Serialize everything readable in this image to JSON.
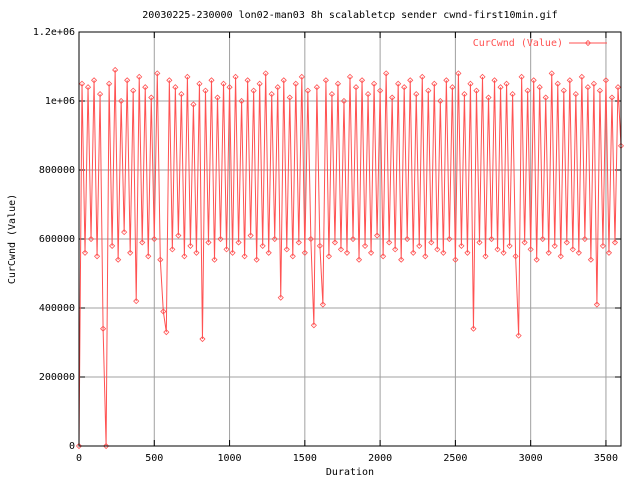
{
  "chart_data": {
    "type": "line",
    "title": "20030225-230000 lon02-man03 8h scalabletcp sender cwnd-first10min.gif",
    "x_label": "Duration",
    "y_label": "CurCwnd (Value)",
    "xlim": [
      0,
      3600
    ],
    "ylim": [
      0,
      1200000
    ],
    "xticks": [
      0,
      500,
      1000,
      1500,
      2000,
      2500,
      3000,
      3500
    ],
    "yticks": [
      0,
      200000,
      400000,
      600000,
      800000,
      {
        "value": 1000000,
        "label": "1e+06"
      },
      {
        "value": 1200000,
        "label": "1.2e+06"
      }
    ],
    "grid": true,
    "legend": "top-right",
    "x": [
      0,
      20,
      40,
      60,
      80,
      100,
      120,
      140,
      160,
      180,
      200,
      220,
      240,
      260,
      280,
      300,
      320,
      340,
      360,
      380,
      400,
      420,
      440,
      460,
      480,
      500,
      520,
      540,
      560,
      580,
      600,
      620,
      640,
      660,
      680,
      700,
      720,
      740,
      760,
      780,
      800,
      820,
      840,
      860,
      880,
      900,
      920,
      940,
      960,
      980,
      1000,
      1020,
      1040,
      1060,
      1080,
      1100,
      1120,
      1140,
      1160,
      1180,
      1200,
      1220,
      1240,
      1260,
      1280,
      1300,
      1320,
      1340,
      1360,
      1380,
      1400,
      1420,
      1440,
      1460,
      1480,
      1500,
      1520,
      1540,
      1560,
      1580,
      1600,
      1620,
      1640,
      1660,
      1680,
      1700,
      1720,
      1740,
      1760,
      1780,
      1800,
      1820,
      1840,
      1860,
      1880,
      1900,
      1920,
      1940,
      1960,
      1980,
      2000,
      2020,
      2040,
      2060,
      2080,
      2100,
      2120,
      2140,
      2160,
      2180,
      2200,
      2220,
      2240,
      2260,
      2280,
      2300,
      2320,
      2340,
      2360,
      2380,
      2400,
      2420,
      2440,
      2460,
      2480,
      2500,
      2520,
      2540,
      2560,
      2580,
      2600,
      2620,
      2640,
      2660,
      2680,
      2700,
      2720,
      2740,
      2760,
      2780,
      2800,
      2820,
      2840,
      2860,
      2880,
      2900,
      2920,
      2940,
      2960,
      2980,
      3000,
      3020,
      3040,
      3060,
      3080,
      3100,
      3120,
      3140,
      3160,
      3180,
      3200,
      3220,
      3240,
      3260,
      3280,
      3300,
      3320,
      3340,
      3360,
      3380,
      3400,
      3420,
      3440,
      3460,
      3480,
      3500,
      3520,
      3540,
      3560,
      3580,
      3600
    ],
    "series": [
      {
        "name": "CurCwnd (Value)",
        "color": "#ff5252",
        "values": [
          0,
          1050000,
          560000,
          1040000,
          600000,
          1060000,
          550000,
          1020000,
          340000,
          0,
          1050000,
          580000,
          1090000,
          540000,
          1000000,
          620000,
          1060000,
          560000,
          1030000,
          420000,
          1070000,
          590000,
          1040000,
          550000,
          1010000,
          600000,
          1080000,
          540000,
          390000,
          330000,
          1060000,
          570000,
          1040000,
          610000,
          1020000,
          550000,
          1070000,
          580000,
          990000,
          560000,
          1050000,
          310000,
          1030000,
          590000,
          1060000,
          540000,
          1010000,
          600000,
          1050000,
          570000,
          1040000,
          560000,
          1070000,
          590000,
          1000000,
          550000,
          1060000,
          610000,
          1030000,
          540000,
          1050000,
          580000,
          1080000,
          560000,
          1020000,
          600000,
          1040000,
          430000,
          1060000,
          570000,
          1010000,
          550000,
          1050000,
          590000,
          1070000,
          560000,
          1030000,
          600000,
          350000,
          1040000,
          580000,
          410000,
          1060000,
          550000,
          1020000,
          590000,
          1050000,
          570000,
          1000000,
          560000,
          1070000,
          600000,
          1040000,
          540000,
          1060000,
          580000,
          1020000,
          560000,
          1050000,
          610000,
          1030000,
          550000,
          1080000,
          590000,
          1010000,
          570000,
          1050000,
          540000,
          1040000,
          600000,
          1060000,
          560000,
          1020000,
          580000,
          1070000,
          550000,
          1030000,
          590000,
          1050000,
          570000,
          1000000,
          560000,
          1060000,
          600000,
          1040000,
          540000,
          1080000,
          580000,
          1020000,
          560000,
          1050000,
          340000,
          1030000,
          590000,
          1070000,
          550000,
          1010000,
          600000,
          1060000,
          570000,
          1040000,
          560000,
          1050000,
          580000,
          1020000,
          550000,
          320000,
          1070000,
          590000,
          1030000,
          570000,
          1060000,
          540000,
          1040000,
          600000,
          1010000,
          560000,
          1080000,
          580000,
          1050000,
          550000,
          1030000,
          590000,
          1060000,
          570000,
          1020000,
          560000,
          1070000,
          600000,
          1040000,
          540000,
          1050000,
          410000,
          1030000,
          580000,
          1060000,
          560000,
          1010000,
          590000,
          1040000,
          870000
        ]
      }
    ]
  }
}
